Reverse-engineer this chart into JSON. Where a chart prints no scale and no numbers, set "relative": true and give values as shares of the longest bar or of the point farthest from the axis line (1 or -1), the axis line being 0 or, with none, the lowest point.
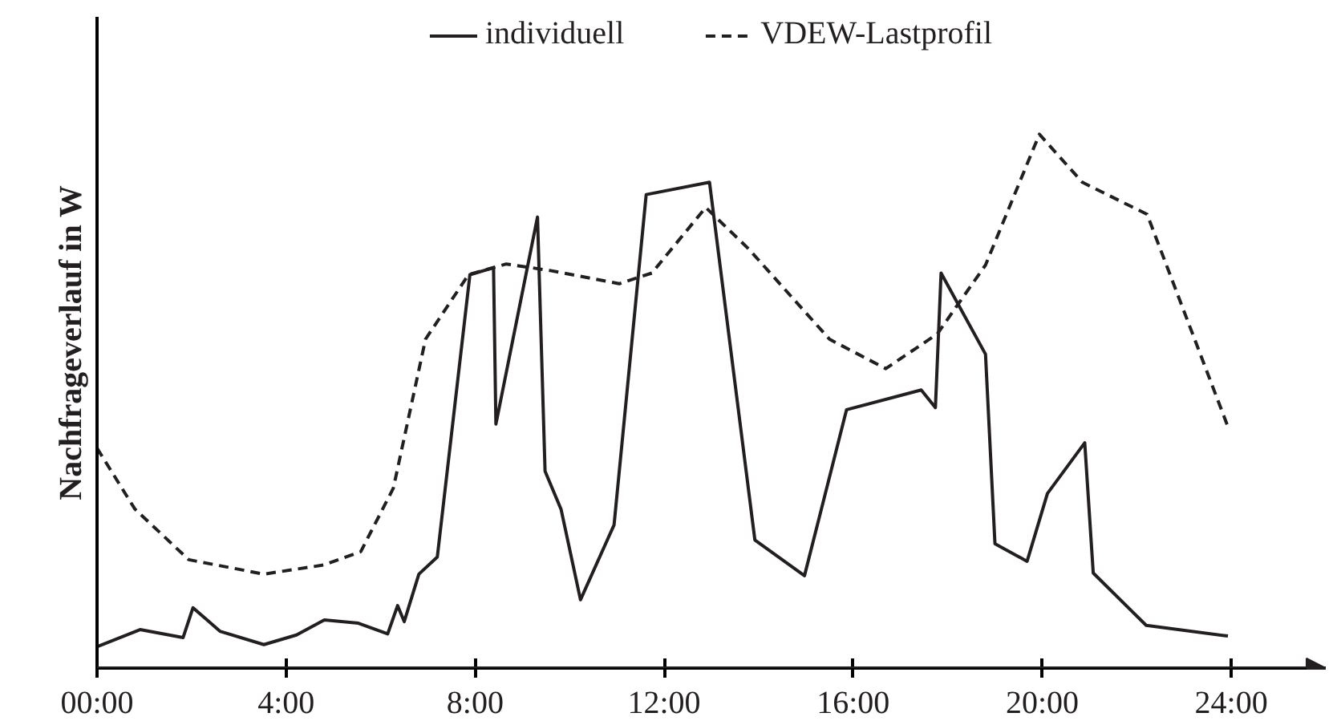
{
  "chart_data": {
    "type": "line",
    "relative": true,
    "ylabel": "Nachfrageverlauf in W",
    "legend": "top",
    "grid": false,
    "marker": "none",
    "xlim": [
      0,
      26
    ],
    "xticks": [
      {
        "value": 0,
        "label": "00:00"
      },
      {
        "value": 4,
        "label": "4:00"
      },
      {
        "value": 8,
        "label": "8:00"
      },
      {
        "value": 12,
        "label": "12:00"
      },
      {
        "value": 16,
        "label": "16:00"
      },
      {
        "value": 20,
        "label": "20:00"
      },
      {
        "value": 24,
        "label": "24:00"
      }
    ],
    "series": [
      {
        "name": "individuell",
        "color": "#231f20",
        "line_style": "solid",
        "x": [
          0,
          0.91,
          1.82,
          2.03,
          2.6,
          3.53,
          4.22,
          4.81,
          5.53,
          6.15,
          6.36,
          6.5,
          6.81,
          7.2,
          7.89,
          8.39,
          8.44,
          9.32,
          9.48,
          9.82,
          10.23,
          10.94,
          11.62,
          12.96,
          13.92,
          14.97,
          15.86,
          17.44,
          17.74,
          17.86,
          18.8,
          19.0,
          19.68,
          20.11,
          20.9,
          21.08,
          22.2,
          23.93
        ],
        "values": [
          0.04,
          0.072,
          0.057,
          0.113,
          0.069,
          0.044,
          0.062,
          0.09,
          0.084,
          0.064,
          0.117,
          0.087,
          0.176,
          0.208,
          0.737,
          0.75,
          0.457,
          0.845,
          0.369,
          0.297,
          0.128,
          0.268,
          0.887,
          0.91,
          0.24,
          0.173,
          0.484,
          0.521,
          0.488,
          0.74,
          0.588,
          0.233,
          0.2,
          0.327,
          0.422,
          0.178,
          0.08,
          0.06
        ]
      },
      {
        "name": "VDEW-Lastprofil",
        "color": "#231f20",
        "line_style": "dashed",
        "x": [
          0,
          0.8,
          1.94,
          3.53,
          4.79,
          5.58,
          6.27,
          6.95,
          7.86,
          8.66,
          9.57,
          11.05,
          11.74,
          12.88,
          13.79,
          15.5,
          16.69,
          17.78,
          18.8,
          19.94,
          20.85,
          22.22,
          23.93
        ],
        "values": [
          0.412,
          0.298,
          0.203,
          0.176,
          0.193,
          0.218,
          0.337,
          0.616,
          0.737,
          0.757,
          0.745,
          0.72,
          0.74,
          0.863,
          0.785,
          0.616,
          0.561,
          0.626,
          0.755,
          1,
          0.91,
          0.85,
          0.452
        ]
      }
    ]
  }
}
